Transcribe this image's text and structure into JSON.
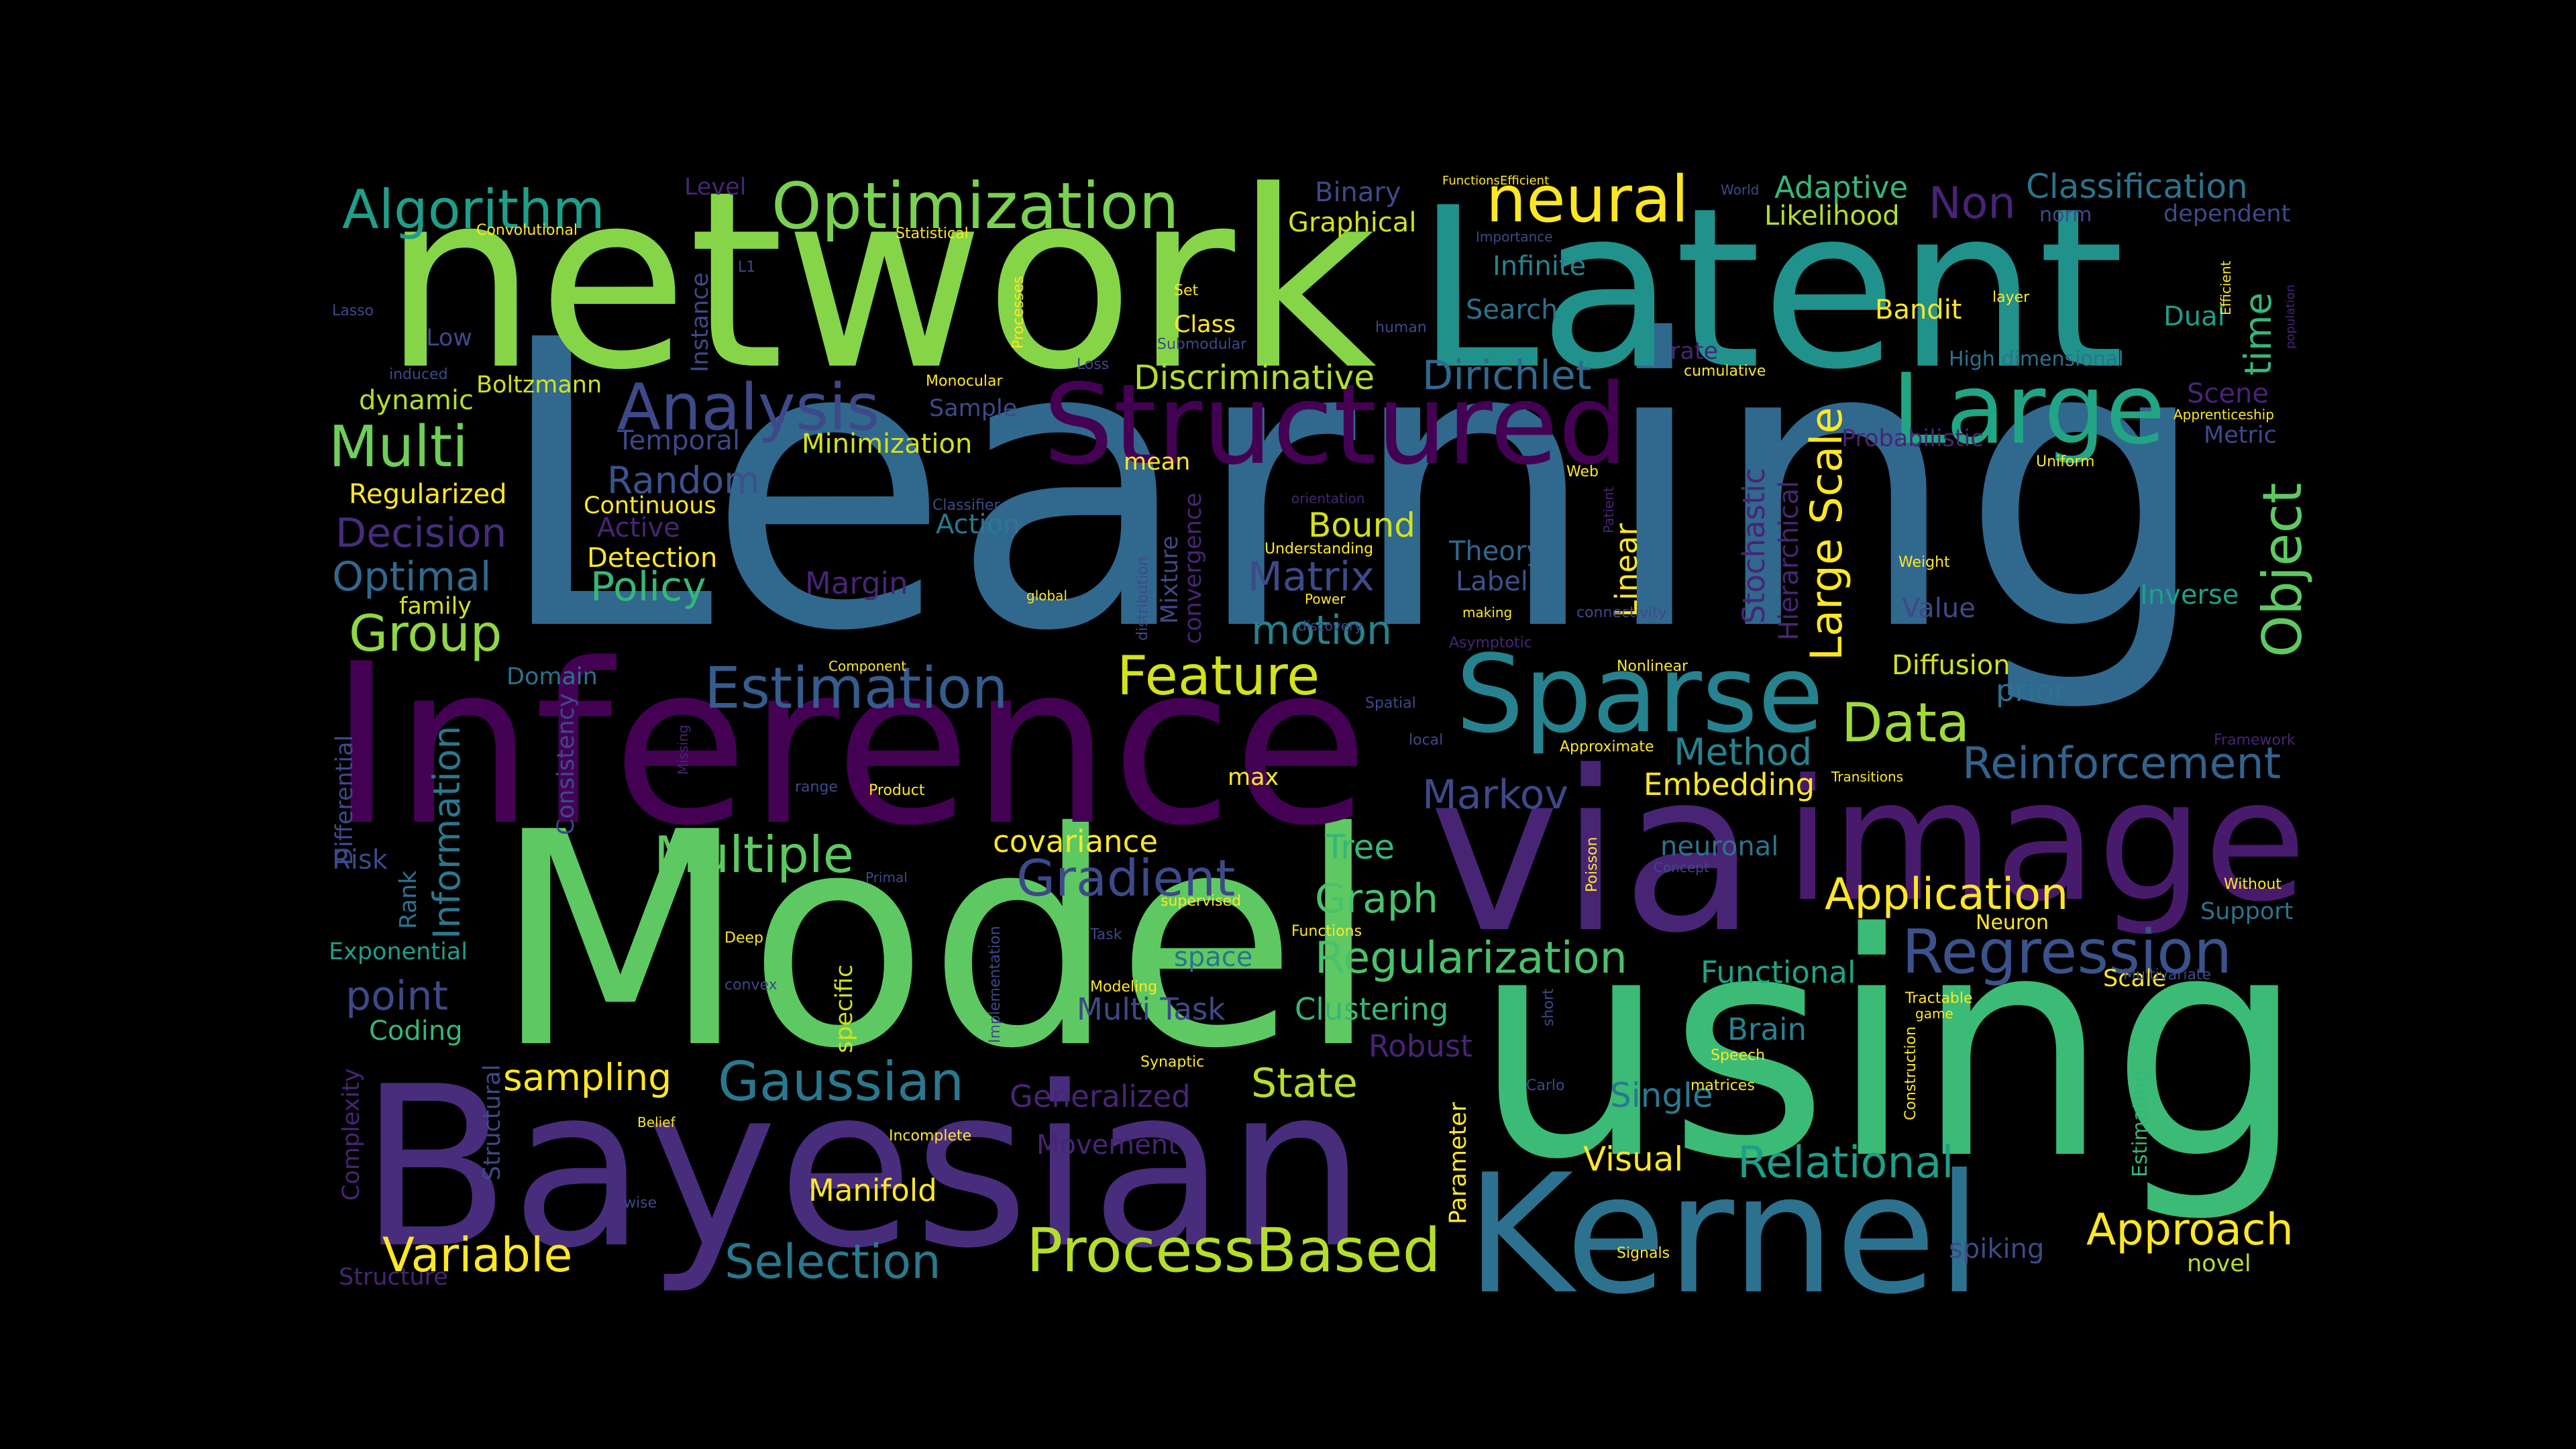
{
  "title": "",
  "colors": {
    "background": "#000000",
    "dark_purple": "#440154",
    "indigo": "#472c7a",
    "violet_blue": "#3b528b",
    "slate_blue": "#2c728e",
    "teal": "#21918c",
    "green_teal": "#28ae80",
    "green": "#5ec962",
    "light_green": "#addc30",
    "yellow": "#fde725"
  },
  "words": [
    {
      "text": "Learning",
      "color": "#31688e"
    },
    {
      "text": "Model",
      "color": "#5ec962"
    },
    {
      "text": "using",
      "color": "#3bbb75"
    },
    {
      "text": "network",
      "color": "#86d549"
    },
    {
      "text": "Inference",
      "color": "#440154"
    },
    {
      "text": "Bayesian",
      "color": "#472d7b"
    },
    {
      "text": "Latent",
      "color": "#21918c"
    },
    {
      "text": "via",
      "color": "#482475"
    },
    {
      "text": "Kernel",
      "color": "#2c728e"
    },
    {
      "text": "image",
      "color": "#481a6c"
    },
    {
      "text": "Structured",
      "color": "#440154"
    },
    {
      "text": "Sparse",
      "color": "#26828e"
    },
    {
      "text": "Large",
      "color": "#21a585"
    },
    {
      "text": "Optimization",
      "color": "#7ad151"
    },
    {
      "text": "Algorithm",
      "color": "#1f9e89"
    },
    {
      "text": "neural",
      "color": "#fde725"
    },
    {
      "text": "Analysis",
      "color": "#3e4989"
    },
    {
      "text": "Estimation",
      "color": "#365c8d"
    },
    {
      "text": "ProcessBased",
      "color": "#b5de2b"
    },
    {
      "text": "Regression",
      "color": "#3b528b"
    },
    {
      "text": "Gaussian",
      "color": "#2a788e"
    },
    {
      "text": "Reinforcement",
      "color": "#33638d"
    },
    {
      "text": "Multiple",
      "color": "#5ec962"
    },
    {
      "text": "Gradient",
      "color": "#3e4989"
    },
    {
      "text": "Feature",
      "color": "#d2e21b"
    },
    {
      "text": "Data",
      "color": "#a0da39"
    },
    {
      "text": "Multi",
      "color": "#6ece58"
    },
    {
      "text": "Group",
      "color": "#90d743"
    },
    {
      "text": "Variable",
      "color": "#fde725"
    },
    {
      "text": "Selection",
      "color": "#2a788e"
    },
    {
      "text": "Approach",
      "color": "#fde725"
    },
    {
      "text": "Relational",
      "color": "#1f9e89"
    },
    {
      "text": "Application",
      "color": "#fde725"
    },
    {
      "text": "Regularization",
      "color": "#4ac16d"
    },
    {
      "text": "Object",
      "color": "#5ec962"
    },
    {
      "text": "Large Scale",
      "color": "#fde725"
    },
    {
      "text": "Dirichlet",
      "color": "#31688e"
    },
    {
      "text": "Discriminative",
      "color": "#b5de2b"
    },
    {
      "text": "Random",
      "color": "#3b528b"
    },
    {
      "text": "Decision",
      "color": "#472d7b"
    },
    {
      "text": "Optimal",
      "color": "#31688e"
    },
    {
      "text": "Policy",
      "color": "#35b779"
    },
    {
      "text": "Matrix",
      "color": "#3e4989"
    },
    {
      "text": "motion",
      "color": "#26828e"
    },
    {
      "text": "Markov",
      "color": "#3e4989"
    },
    {
      "text": "Method",
      "color": "#26828e"
    },
    {
      "text": "Embedding",
      "color": "#fde725"
    },
    {
      "text": "Graph",
      "color": "#4ac16d"
    },
    {
      "text": "State",
      "color": "#b5de2b"
    },
    {
      "text": "Tree",
      "color": "#35b779"
    },
    {
      "text": "covariance",
      "color": "#fde725"
    },
    {
      "text": "sampling",
      "color": "#fde725"
    },
    {
      "text": "point",
      "color": "#3e4989"
    },
    {
      "text": "Information",
      "color": "#2a788e"
    },
    {
      "text": "Generalized",
      "color": "#482475"
    },
    {
      "text": "Manifold",
      "color": "#fde725"
    },
    {
      "text": "Movement",
      "color": "#482475"
    },
    {
      "text": "Visual",
      "color": "#fde725"
    },
    {
      "text": "Single",
      "color": "#2a788e"
    },
    {
      "text": "Clustering",
      "color": "#35b779"
    },
    {
      "text": "Multi Task",
      "color": "#3e4989"
    },
    {
      "text": "Robust",
      "color": "#482475"
    },
    {
      "text": "Functional",
      "color": "#20a386"
    },
    {
      "text": "Brain",
      "color": "#26828e"
    },
    {
      "text": "Stochastic",
      "color": "#482475"
    },
    {
      "text": "Linear",
      "color": "#fde725"
    },
    {
      "text": "Hierarchical",
      "color": "#482475"
    },
    {
      "text": "Non",
      "color": "#482475"
    },
    {
      "text": "Classification",
      "color": "#2c728e"
    },
    {
      "text": "Adaptive",
      "color": "#35b779"
    },
    {
      "text": "Likelihood",
      "color": "#b5de2b"
    },
    {
      "text": "Binary",
      "color": "#3e4989"
    },
    {
      "text": "Graphical",
      "color": "#d2e21b"
    },
    {
      "text": "Infinite",
      "color": "#26828e"
    },
    {
      "text": "Search",
      "color": "#2c728e"
    },
    {
      "text": "time",
      "color": "#35b779"
    },
    {
      "text": "Dual",
      "color": "#1f9e89"
    },
    {
      "text": "Bandit",
      "color": "#fde725"
    },
    {
      "text": "Scene",
      "color": "#482475"
    },
    {
      "text": "Metric",
      "color": "#3e4989"
    },
    {
      "text": "Probabilistic",
      "color": "#482475"
    },
    {
      "text": "Action",
      "color": "#2a788e"
    },
    {
      "text": "Bound",
      "color": "#d2e21b"
    },
    {
      "text": "Theory",
      "color": "#31688e"
    },
    {
      "text": "Label",
      "color": "#3b528b"
    },
    {
      "text": "Margin",
      "color": "#482475"
    },
    {
      "text": "Temporal",
      "color": "#3e4989"
    },
    {
      "text": "Minimization",
      "color": "#d2e21b"
    },
    {
      "text": "Active",
      "color": "#482475"
    },
    {
      "text": "Continuous",
      "color": "#fde725"
    },
    {
      "text": "Detection",
      "color": "#fde725"
    },
    {
      "text": "Regularized",
      "color": "#fde725"
    },
    {
      "text": "dynamic",
      "color": "#b5de2b"
    },
    {
      "text": "Boltzmann",
      "color": "#d2e21b"
    },
    {
      "text": "Instance",
      "color": "#3e4989"
    },
    {
      "text": "Sample",
      "color": "#3e4989"
    },
    {
      "text": "Class",
      "color": "#fde725"
    },
    {
      "text": "Low",
      "color": "#3e4989"
    },
    {
      "text": "family",
      "color": "#d2e21b"
    },
    {
      "text": "Domain",
      "color": "#2c728e"
    },
    {
      "text": "Differential",
      "color": "#3e4989"
    },
    {
      "text": "Consistency",
      "color": "#3e4989"
    },
    {
      "text": "Risk",
      "color": "#3e4989"
    },
    {
      "text": "Rank",
      "color": "#2c728e"
    },
    {
      "text": "Exponential",
      "color": "#1f9e89"
    },
    {
      "text": "Coding",
      "color": "#35b779"
    },
    {
      "text": "Structural",
      "color": "#3e4989"
    },
    {
      "text": "Complexity",
      "color": "#482475"
    },
    {
      "text": "Structure",
      "color": "#482475"
    },
    {
      "text": "Diffusion",
      "color": "#d2e21b"
    },
    {
      "text": "prior",
      "color": "#2c728e"
    },
    {
      "text": "Value",
      "color": "#3e4989"
    },
    {
      "text": "Inverse",
      "color": "#1f9e89"
    },
    {
      "text": "neuronal",
      "color": "#2c728e"
    },
    {
      "text": "Support",
      "color": "#2c728e"
    },
    {
      "text": "Scale",
      "color": "#fde725"
    },
    {
      "text": "Estimating",
      "color": "#35b779"
    },
    {
      "text": "spiking",
      "color": "#3e4989"
    },
    {
      "text": "novel",
      "color": "#b5de2b"
    },
    {
      "text": "Mixture",
      "color": "#3e4989"
    },
    {
      "text": "convergence",
      "color": "#482475"
    },
    {
      "text": "mean",
      "color": "#fde725"
    },
    {
      "text": "max",
      "color": "#fde725"
    },
    {
      "text": "specific",
      "color": "#d2e21b"
    },
    {
      "text": "space",
      "color": "#2c728e"
    },
    {
      "text": "Parameter",
      "color": "#fde725"
    },
    {
      "text": "Level",
      "color": "#482475"
    },
    {
      "text": "Convolutional",
      "color": "#fde725"
    },
    {
      "text": "Statistical",
      "color": "#fde725"
    },
    {
      "text": "L1",
      "color": "#3e4989"
    },
    {
      "text": "Processes",
      "color": "#fde725"
    },
    {
      "text": "Lasso",
      "color": "#3e4989"
    },
    {
      "text": "Monocular",
      "color": "#fde725"
    },
    {
      "text": "induced",
      "color": "#3e4989"
    },
    {
      "text": "Submodular",
      "color": "#3e4989"
    },
    {
      "text": "Loss",
      "color": "#3e4989"
    },
    {
      "text": "human",
      "color": "#3e4989"
    },
    {
      "text": "Set",
      "color": "#fde725"
    },
    {
      "text": "FunctionsEfficient",
      "color": "#fde725"
    },
    {
      "text": "Importance",
      "color": "#3e4989"
    },
    {
      "text": "World",
      "color": "#3e4989"
    },
    {
      "text": "layer",
      "color": "#fde725"
    },
    {
      "text": "Efficient",
      "color": "#fde725"
    },
    {
      "text": "population",
      "color": "#482475"
    },
    {
      "text": "rate",
      "color": "#482475"
    },
    {
      "text": "cumulative",
      "color": "#fde725"
    },
    {
      "text": "High dimensional",
      "color": "#2c728e"
    },
    {
      "text": "Apprenticeship",
      "color": "#fde725"
    },
    {
      "text": "Uniform",
      "color": "#fde725"
    },
    {
      "text": "Weight",
      "color": "#fde725"
    },
    {
      "text": "Web",
      "color": "#fde725"
    },
    {
      "text": "Patient",
      "color": "#482475"
    },
    {
      "text": "orientation",
      "color": "#482475"
    },
    {
      "text": "Classifier",
      "color": "#3e4989"
    },
    {
      "text": "Understanding",
      "color": "#fde725"
    },
    {
      "text": "distribution",
      "color": "#3e4989"
    },
    {
      "text": "global",
      "color": "#fde725"
    },
    {
      "text": "Power",
      "color": "#fde725"
    },
    {
      "text": "discovery",
      "color": "#3e4989"
    },
    {
      "text": "making",
      "color": "#fde725"
    },
    {
      "text": "Asymptotic",
      "color": "#482475"
    },
    {
      "text": "connectivity",
      "color": "#3e4989"
    },
    {
      "text": "Nonlinear",
      "color": "#fde725"
    },
    {
      "text": "Component",
      "color": "#fde725"
    },
    {
      "text": "Spatial",
      "color": "#3e4989"
    },
    {
      "text": "Approximate",
      "color": "#fde725"
    },
    {
      "text": "local",
      "color": "#3e4989"
    },
    {
      "text": "Missing",
      "color": "#482475"
    },
    {
      "text": "Framework",
      "color": "#482475"
    },
    {
      "text": "Transitions",
      "color": "#fde725"
    },
    {
      "text": "range",
      "color": "#3e4989"
    },
    {
      "text": "Product",
      "color": "#fde725"
    },
    {
      "text": "Primal",
      "color": "#3e4989"
    },
    {
      "text": "supervised",
      "color": "#fde725"
    },
    {
      "text": "Concept",
      "color": "#3e4989"
    },
    {
      "text": "Poisson",
      "color": "#fde725"
    },
    {
      "text": "Without",
      "color": "#fde725"
    },
    {
      "text": "Deep",
      "color": "#fde725"
    },
    {
      "text": "Task",
      "color": "#3e4989"
    },
    {
      "text": "Functions",
      "color": "#fde725"
    },
    {
      "text": "convex",
      "color": "#3e4989"
    },
    {
      "text": "Modeling",
      "color": "#fde725"
    },
    {
      "text": "Implementation",
      "color": "#3e4989"
    },
    {
      "text": "Neuron",
      "color": "#fde725"
    },
    {
      "text": "Multivariate",
      "color": "#3e4989"
    },
    {
      "text": "Tractable",
      "color": "#fde725"
    },
    {
      "text": "game",
      "color": "#fde725"
    },
    {
      "text": "short",
      "color": "#3e4989"
    },
    {
      "text": "Speech",
      "color": "#fde725"
    },
    {
      "text": "Construction",
      "color": "#fde725"
    },
    {
      "text": "Synaptic",
      "color": "#fde725"
    },
    {
      "text": "Carlo",
      "color": "#3e4989"
    },
    {
      "text": "matrices",
      "color": "#fde725"
    },
    {
      "text": "Belief",
      "color": "#fde725"
    },
    {
      "text": "Incomplete",
      "color": "#fde725"
    },
    {
      "text": "wise",
      "color": "#3e4989"
    },
    {
      "text": "Signals",
      "color": "#fde725"
    },
    {
      "text": "dependent",
      "color": "#3e4989"
    },
    {
      "text": "norm",
      "color": "#3e4989"
    }
  ]
}
